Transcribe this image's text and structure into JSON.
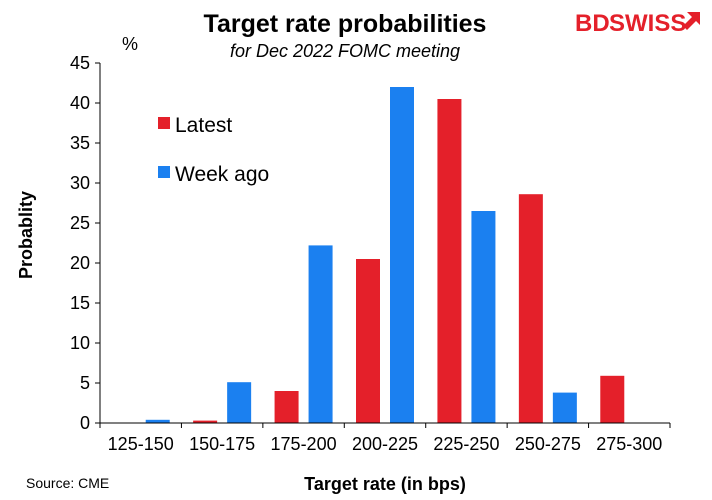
{
  "logo": {
    "part1": "BD",
    "part2": "SWISS"
  },
  "source": "Source: CME",
  "chart_data": {
    "type": "bar",
    "title": "Target rate probabilities",
    "subtitle": "for Dec 2022 FOMC meeting",
    "xlabel": "Target rate (in bps)",
    "ylabel": "Probablity",
    "yunit": "%",
    "ylim": [
      0,
      45
    ],
    "yticks": [
      0,
      5,
      10,
      15,
      20,
      25,
      30,
      35,
      40,
      45
    ],
    "categories": [
      "125-150",
      "150-175",
      "175-200",
      "200-225",
      "225-250",
      "250-275",
      "275-300"
    ],
    "series": [
      {
        "name": "Latest",
        "color": "#e4202a",
        "values": [
          0,
          0.3,
          4.0,
          20.5,
          40.5,
          28.6,
          5.9
        ]
      },
      {
        "name": "Week ago",
        "color": "#1b80f0",
        "values": [
          0.4,
          5.1,
          22.2,
          42.0,
          26.5,
          3.8,
          0
        ]
      }
    ],
    "grid": false,
    "legend": "top-left"
  }
}
